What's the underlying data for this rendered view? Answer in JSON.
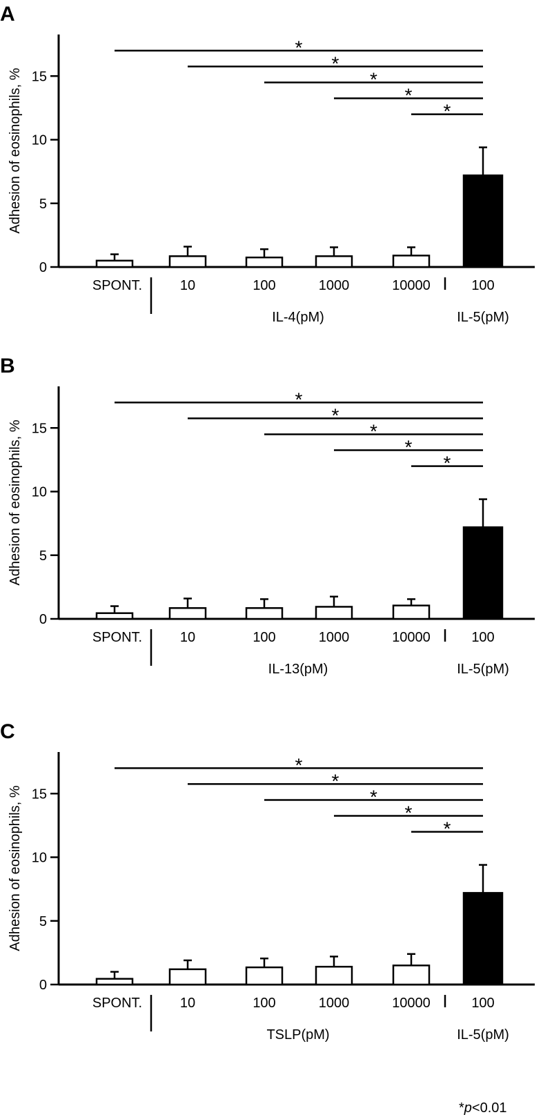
{
  "footnote": {
    "star": "*",
    "p": "p",
    "rest": "<0.01"
  },
  "chart_data": [
    {
      "panel": "A",
      "type": "bar",
      "ylabel": "Adhesion of eosinophils, %",
      "ylim": [
        0,
        18
      ],
      "yticks": [
        0,
        5,
        10,
        15
      ],
      "categories": [
        "SPONT.",
        "10",
        "100",
        "1000",
        "10000",
        "100"
      ],
      "group_labels": [
        "IL-4(pM)",
        "IL-5(pM)"
      ],
      "values": [
        0.5,
        0.85,
        0.75,
        0.85,
        0.9,
        7.2
      ],
      "errors": [
        0.5,
        0.75,
        0.65,
        0.7,
        0.65,
        2.2
      ],
      "fills": [
        "white",
        "white",
        "white",
        "white",
        "white",
        "black"
      ],
      "significance": [
        {
          "from": 0,
          "to": 5,
          "label": "*"
        },
        {
          "from": 1,
          "to": 5,
          "label": "*"
        },
        {
          "from": 2,
          "to": 5,
          "label": "*"
        },
        {
          "from": 3,
          "to": 5,
          "label": "*"
        },
        {
          "from": 4,
          "to": 5,
          "label": "*"
        }
      ]
    },
    {
      "panel": "B",
      "type": "bar",
      "ylabel": "Adhesion of eosinophils, %",
      "ylim": [
        0,
        18
      ],
      "yticks": [
        0,
        5,
        10,
        15
      ],
      "categories": [
        "SPONT.",
        "10",
        "100",
        "1000",
        "10000",
        "100"
      ],
      "group_labels": [
        "IL-13(pM)",
        "IL-5(pM)"
      ],
      "values": [
        0.45,
        0.85,
        0.85,
        0.95,
        1.05,
        7.2
      ],
      "errors": [
        0.55,
        0.75,
        0.7,
        0.8,
        0.5,
        2.2
      ],
      "fills": [
        "white",
        "white",
        "white",
        "white",
        "white",
        "black"
      ],
      "significance": [
        {
          "from": 0,
          "to": 5,
          "label": "*"
        },
        {
          "from": 1,
          "to": 5,
          "label": "*"
        },
        {
          "from": 2,
          "to": 5,
          "label": "*"
        },
        {
          "from": 3,
          "to": 5,
          "label": "*"
        },
        {
          "from": 4,
          "to": 5,
          "label": "*"
        }
      ]
    },
    {
      "panel": "C",
      "type": "bar",
      "ylabel": "Adhesion of eosinophils, %",
      "ylim": [
        0,
        18
      ],
      "yticks": [
        0,
        5,
        10,
        15
      ],
      "categories": [
        "SPONT.",
        "10",
        "100",
        "1000",
        "10000",
        "100"
      ],
      "group_labels": [
        "TSLP(pM)",
        "IL-5(pM)"
      ],
      "values": [
        0.45,
        1.2,
        1.35,
        1.4,
        1.5,
        7.2
      ],
      "errors": [
        0.55,
        0.7,
        0.7,
        0.8,
        0.9,
        2.2
      ],
      "fills": [
        "white",
        "white",
        "white",
        "white",
        "white",
        "black"
      ],
      "significance": [
        {
          "from": 0,
          "to": 5,
          "label": "*"
        },
        {
          "from": 1,
          "to": 5,
          "label": "*"
        },
        {
          "from": 2,
          "to": 5,
          "label": "*"
        },
        {
          "from": 3,
          "to": 5,
          "label": "*"
        },
        {
          "from": 4,
          "to": 5,
          "label": "*"
        }
      ]
    }
  ]
}
